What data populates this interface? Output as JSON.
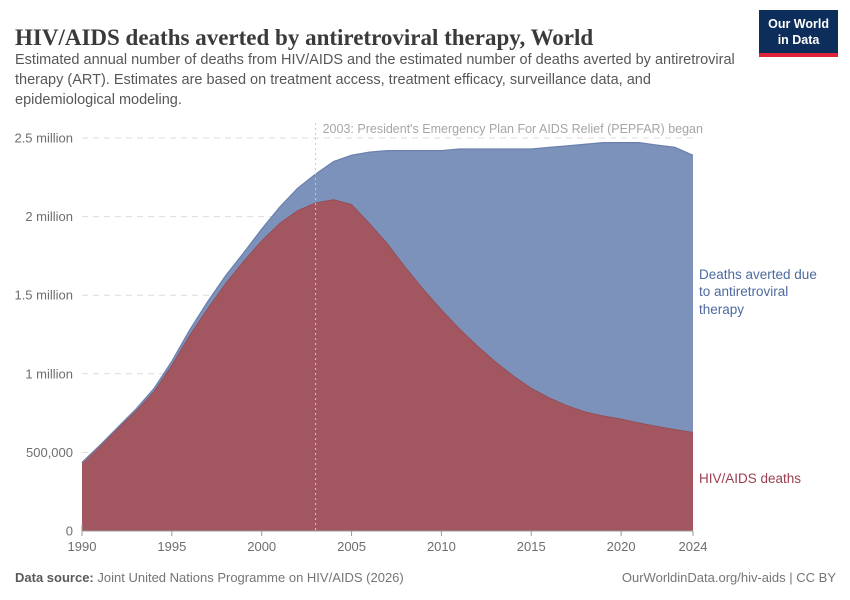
{
  "header": {
    "title": "HIV/AIDS deaths averted by antiretroviral therapy, World",
    "subtitle": "Estimated annual number of deaths from HIV/AIDS and the estimated number of deaths averted by antiretroviral therapy (ART). Estimates are based on treatment access, treatment efficacy, surveillance data, and epidemiological modeling.",
    "logo": {
      "line1": "Our World",
      "line2": "in Data",
      "bg": "#0d2d5a",
      "stripe": "#e0233a"
    }
  },
  "chart_data": {
    "type": "area",
    "stacked": true,
    "grid": true,
    "x": [
      1990,
      1991,
      1992,
      1993,
      1994,
      1995,
      1996,
      1997,
      1998,
      1999,
      2000,
      2001,
      2002,
      2003,
      2004,
      2005,
      2006,
      2007,
      2008,
      2009,
      2010,
      2011,
      2012,
      2013,
      2014,
      2015,
      2016,
      2017,
      2018,
      2019,
      2020,
      2021,
      2022,
      2023,
      2024
    ],
    "series": [
      {
        "name": "HIV/AIDS deaths",
        "color": "#a2565f",
        "edge_color": "#91474f",
        "values": [
          435000,
          545000,
          655000,
          765000,
          890000,
          1060000,
          1250000,
          1420000,
          1580000,
          1720000,
          1850000,
          1960000,
          2040000,
          2090000,
          2110000,
          2080000,
          1960000,
          1830000,
          1680000,
          1540000,
          1410000,
          1290000,
          1180000,
          1080000,
          990000,
          910000,
          850000,
          800000,
          760000,
          735000,
          715000,
          690000,
          668000,
          648000,
          630000
        ]
      },
      {
        "name": "Deaths averted due to antiretroviral therapy",
        "color": "#7d92bb",
        "edge_color": "#6c82ad",
        "values": [
          0,
          0,
          5000,
          10000,
          15000,
          20000,
          30000,
          40000,
          45000,
          50000,
          70000,
          100000,
          140000,
          180000,
          240000,
          310000,
          450000,
          590000,
          740000,
          880000,
          1010000,
          1140000,
          1250000,
          1350000,
          1440000,
          1520000,
          1590000,
          1650000,
          1700000,
          1735000,
          1755000,
          1780000,
          1787000,
          1792000,
          1760000
        ]
      }
    ],
    "ylim": [
      0,
      2500000
    ],
    "yticks": [
      {
        "value": 0,
        "label": "0"
      },
      {
        "value": 500000,
        "label": "500,000"
      },
      {
        "value": 1000000,
        "label": "1 million"
      },
      {
        "value": 1500000,
        "label": "1.5 million"
      },
      {
        "value": 2000000,
        "label": "2 million"
      },
      {
        "value": 2500000,
        "label": "2.5 million"
      }
    ],
    "xticks": [
      1990,
      1995,
      2000,
      2005,
      2010,
      2015,
      2020,
      2024
    ],
    "annotation": {
      "year": 2003,
      "text": "2003: President's Emergency Plan For AIDS Relief (PEPFAR) began",
      "line_color": "#c9c9c9",
      "text_color": "#a6a6a6"
    },
    "series_labels": [
      {
        "text": "Deaths averted due to antiretroviral therapy",
        "color": "#4d6a9f"
      },
      {
        "text": "HIV/AIDS deaths",
        "color": "#9a3e51"
      }
    ],
    "axis_color": "#999999",
    "grid_color": "#dcdcdc",
    "tick_label_color": "#6e6e6e",
    "legend_position": "right"
  },
  "footer": {
    "datasource_label": "Data source:",
    "datasource_value": "Joint United Nations Programme on HIV/AIDS (2026)",
    "rights": "OurWorldinData.org/hiv-aids | CC BY"
  }
}
